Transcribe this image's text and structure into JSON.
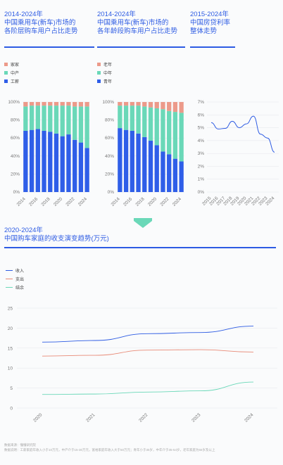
{
  "colors": {
    "accent": "#2d5be3",
    "tier1": "#2f5ee8",
    "tier2": "#6ad8b8",
    "tier3": "#ec9a8a",
    "rate_line": "#2d5be3",
    "income": "#2d5be3",
    "expense": "#e88a77",
    "saving": "#6ad8b8",
    "arrow": "#6ad8b8"
  },
  "panels": {
    "city": {
      "title": "2014-2024年\n中国乘用车(新车)市场的\n各阶层购车用户占比走势",
      "legend": [
        "家家",
        "中产",
        "工薪"
      ]
    },
    "age": {
      "title": "2014-2024年\n中国乘用车(新车)市场的\n各年龄段购车用户占比走势",
      "legend": [
        "老年",
        "中年",
        "青年"
      ]
    },
    "rate": {
      "title": "2015-2024年\n中国房贷利率\n整体走势"
    },
    "income": {
      "title": "2020-2024年\n中国购车家庭的收支演变趋势(万元)",
      "legend": [
        "收入",
        "支出",
        "结余"
      ]
    }
  },
  "footer": {
    "line1": "数据来源：懂懂研究院",
    "line2": "数据说明：工薪家庭年收入小于10万元，中产介于15-30万元，富裕家庭年收入大于50万元；青年小于35岁，中年介于35-54岁，老年家庭为55岁及以上"
  },
  "chart_data": [
    {
      "type": "bar",
      "stacked": true,
      "categories": [
        "2014",
        "2015",
        "2016",
        "2017",
        "2018",
        "2019",
        "2020",
        "2021",
        "2022",
        "2023",
        "2024"
      ],
      "tick_labels": [
        "2014",
        "2016",
        "2018",
        "2020",
        "2022",
        "2024"
      ],
      "ylim": [
        0,
        100
      ],
      "yticks": [
        "0%",
        "20%",
        "40%",
        "60%",
        "80%",
        "100%"
      ],
      "series": [
        {
          "name": "工薪",
          "values": [
            68,
            69,
            70,
            68,
            67,
            65,
            62,
            64,
            58,
            55,
            49
          ]
        },
        {
          "name": "中产",
          "values": [
            27,
            27,
            26,
            28,
            29,
            31,
            34,
            32,
            37,
            40,
            46
          ]
        },
        {
          "name": "家家",
          "values": [
            5,
            4,
            4,
            4,
            4,
            4,
            4,
            4,
            5,
            5,
            5
          ]
        }
      ]
    },
    {
      "type": "bar",
      "stacked": true,
      "categories": [
        "2014",
        "2015",
        "2016",
        "2017",
        "2018",
        "2019",
        "2020",
        "2021",
        "2022",
        "2023",
        "2024"
      ],
      "tick_labels": [
        "2014",
        "2016",
        "2018",
        "2020",
        "2022",
        "2024"
      ],
      "ylim": [
        0,
        100
      ],
      "yticks": [
        "0%",
        "20%",
        "40%",
        "60%",
        "80%",
        "100%"
      ],
      "series": [
        {
          "name": "青年",
          "values": [
            71,
            69,
            68,
            65,
            61,
            57,
            52,
            45,
            42,
            37,
            34
          ]
        },
        {
          "name": "中年",
          "values": [
            25,
            27,
            28,
            31,
            34,
            37,
            41,
            47,
            48,
            52,
            54
          ]
        },
        {
          "name": "老年",
          "values": [
            4,
            4,
            4,
            4,
            5,
            6,
            7,
            8,
            10,
            11,
            12
          ]
        }
      ]
    },
    {
      "type": "line",
      "x": [
        "2015",
        "2016",
        "2017",
        "2018",
        "2019",
        "2020",
        "2021",
        "2022",
        "2023",
        "2024"
      ],
      "ylim": [
        0,
        7
      ],
      "yticks": [
        "0%",
        "1%",
        "2%",
        "3%",
        "4%",
        "5%",
        "6%",
        "7%"
      ],
      "series": [
        {
          "values": [
            5.4,
            4.9,
            4.95,
            5.5,
            5.0,
            5.3,
            5.9,
            4.5,
            4.2,
            3.1
          ]
        }
      ]
    },
    {
      "type": "line",
      "x": [
        "2020",
        "2021",
        "2022",
        "2023",
        "2024"
      ],
      "ylim": [
        0,
        25
      ],
      "yticks": [
        "0",
        "5",
        "10",
        "15",
        "20",
        "25"
      ],
      "series": [
        {
          "name": "收入",
          "values": [
            16.5,
            16.9,
            18.6,
            18.9,
            20.5
          ]
        },
        {
          "name": "支出",
          "values": [
            13.0,
            13.2,
            14.5,
            14.6,
            14.0
          ]
        },
        {
          "name": "结余",
          "values": [
            3.4,
            3.5,
            4.0,
            4.3,
            6.5
          ]
        }
      ]
    }
  ]
}
